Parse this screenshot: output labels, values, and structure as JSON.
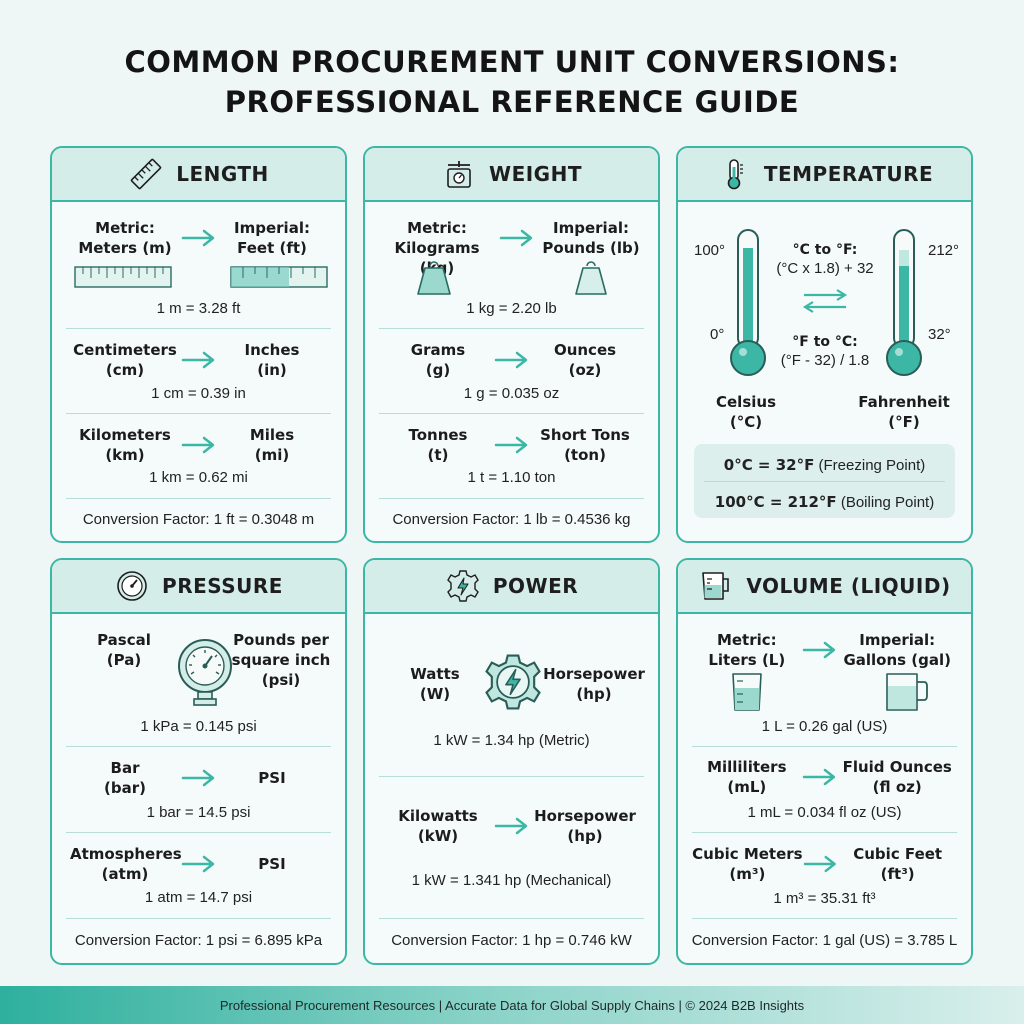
{
  "title": {
    "line1": "COMMON PROCUREMENT UNIT CONVERSIONS:",
    "line2": "PROFESSIONAL REFERENCE GUIDE"
  },
  "colors": {
    "accent": "#3cb6a5",
    "header_bg": "#d4ede9",
    "page_bg": "#eef6f6"
  },
  "length": {
    "title": "LENGTH",
    "icon": "ruler-icon",
    "r1": {
      "left": "Metric:\nMeters (m)",
      "right": "Imperial:\nFeet (ft)",
      "eq": "1 m = 3.28 ft"
    },
    "r2": {
      "left": "Centimeters\n(cm)",
      "right": "Inches\n(in)",
      "eq": "1 cm = 0.39 in"
    },
    "r3": {
      "left": "Kilometers\n(km)",
      "right": "Miles\n(mi)",
      "eq": "1 km = 0.62 mi"
    },
    "factor": "Conversion Factor: 1 ft = 0.3048 m"
  },
  "weight": {
    "title": "WEIGHT",
    "icon": "scale-icon",
    "r1": {
      "left": "Metric:\nKilograms (kg)",
      "right": "Imperial:\nPounds (lb)",
      "eq": "1 kg = 2.20 lb"
    },
    "r2": {
      "left": "Grams\n(g)",
      "right": "Ounces\n(oz)",
      "eq": "1 g = 0.035 oz"
    },
    "r3": {
      "left": "Tonnes\n(t)",
      "right": "Short Tons\n(ton)",
      "eq": "1 t = 1.10 ton"
    },
    "factor": "Conversion Factor: 1 lb = 0.4536 kg"
  },
  "temperature": {
    "title": "TEMPERATURE",
    "icon": "thermometer-icon",
    "c_top": "100°",
    "c_bottom": "0°",
    "f_top": "212°",
    "f_bottom": "32°",
    "c_to_f_title": "°C to °F:",
    "c_to_f_formula": "(°C x 1.8) + 32",
    "f_to_c_title": "°F to °C:",
    "f_to_c_formula": "(°F - 32) / 1.8",
    "celsius": "Celsius\n(°C)",
    "fahrenheit": "Fahrenheit\n(°F)",
    "freeze_bold": "0°C = 32°F",
    "freeze_note": " (Freezing Point)",
    "boil_bold": "100°C = 212°F",
    "boil_note": " (Boiling Point)"
  },
  "pressure": {
    "title": "PRESSURE",
    "icon": "gauge-icon",
    "r1": {
      "left": "Pascal\n(Pa)",
      "right": "Pounds per\nsquare inch\n(psi)",
      "eq": "1 kPa = 0.145 psi"
    },
    "r2": {
      "left": "Bar\n(bar)",
      "right": "PSI",
      "eq": "1 bar = 14.5 psi"
    },
    "r3": {
      "left": "Atmospheres\n(atm)",
      "right": "PSI",
      "eq": "1 atm = 14.7 psi"
    },
    "factor": "Conversion Factor: 1 psi = 6.895 kPa"
  },
  "power": {
    "title": "POWER",
    "icon": "gear-bolt-icon",
    "r1": {
      "left": "Watts\n(W)",
      "right": "Horsepower\n(hp)",
      "eq": "1 kW = 1.34 hp (Metric)"
    },
    "r2": {
      "left": "Kilowatts\n(kW)",
      "right": "Horsepower\n(hp)",
      "eq": "1 kW = 1.341 hp (Mechanical)"
    },
    "factor": "Conversion Factor: 1 hp = 0.746 kW"
  },
  "volume": {
    "title": "VOLUME (LIQUID)",
    "icon": "measuring-cup-icon",
    "r1": {
      "left": "Metric:\nLiters (L)",
      "right": "Imperial:\nGallons (gal)",
      "eq": "1 L = 0.26 gal (US)"
    },
    "r2": {
      "left": "Milliliters\n(mL)",
      "right": "Fluid Ounces\n(fl oz)",
      "eq": "1 mL = 0.034 fl oz (US)"
    },
    "r3": {
      "left": "Cubic Meters\n(m³)",
      "right": "Cubic Feet\n(ft³)",
      "eq": "1 m³ = 35.31 ft³"
    },
    "factor": "Conversion Factor: 1 gal (US) = 3.785 L"
  },
  "footer": "Professional Procurement Resources | Accurate Data for Global Supply Chains | © 2024 B2B Insights"
}
